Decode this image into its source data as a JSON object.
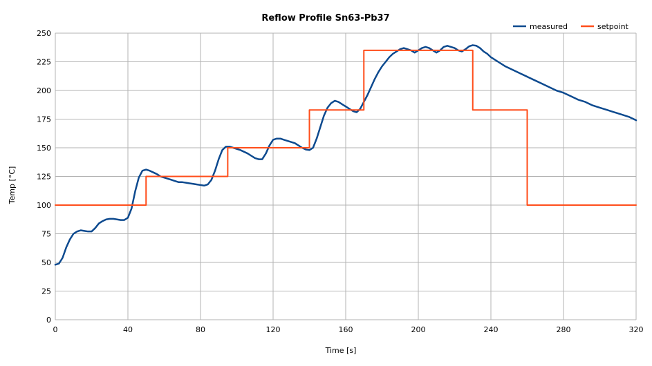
{
  "chart_data": {
    "type": "line",
    "title": "Reflow Profile Sn63-Pb37",
    "xlabel": "Time [s]",
    "ylabel": "Temp [°C]",
    "xlim": [
      0,
      320
    ],
    "ylim": [
      0,
      250
    ],
    "x_ticks": [
      0,
      40,
      80,
      120,
      160,
      200,
      240,
      280,
      320
    ],
    "y_ticks": [
      0,
      25,
      50,
      75,
      100,
      125,
      150,
      175,
      200,
      225,
      250
    ],
    "grid": true,
    "legend_position": "top-right",
    "series": [
      {
        "name": "measured",
        "color": "#0d4a8f",
        "points": [
          [
            0,
            48
          ],
          [
            2,
            49
          ],
          [
            4,
            54
          ],
          [
            6,
            63
          ],
          [
            8,
            70
          ],
          [
            10,
            75
          ],
          [
            12,
            77
          ],
          [
            14,
            78
          ],
          [
            16,
            77.5
          ],
          [
            18,
            77
          ],
          [
            20,
            77
          ],
          [
            22,
            80
          ],
          [
            24,
            84
          ],
          [
            26,
            86
          ],
          [
            28,
            87.5
          ],
          [
            30,
            88
          ],
          [
            32,
            88
          ],
          [
            34,
            87.5
          ],
          [
            36,
            87
          ],
          [
            38,
            87
          ],
          [
            40,
            89
          ],
          [
            42,
            97
          ],
          [
            44,
            112
          ],
          [
            46,
            124
          ],
          [
            48,
            130
          ],
          [
            50,
            131
          ],
          [
            52,
            130
          ],
          [
            54,
            128.5
          ],
          [
            56,
            127
          ],
          [
            58,
            125
          ],
          [
            60,
            124
          ],
          [
            62,
            123
          ],
          [
            64,
            122
          ],
          [
            66,
            121
          ],
          [
            68,
            120
          ],
          [
            70,
            120
          ],
          [
            72,
            119.5
          ],
          [
            74,
            119
          ],
          [
            76,
            118.5
          ],
          [
            78,
            118
          ],
          [
            80,
            117.5
          ],
          [
            82,
            117
          ],
          [
            84,
            118
          ],
          [
            86,
            122
          ],
          [
            88,
            130
          ],
          [
            90,
            140
          ],
          [
            92,
            148
          ],
          [
            94,
            151
          ],
          [
            96,
            151
          ],
          [
            98,
            150
          ],
          [
            100,
            149
          ],
          [
            102,
            148
          ],
          [
            104,
            146.5
          ],
          [
            106,
            145
          ],
          [
            108,
            143
          ],
          [
            110,
            141
          ],
          [
            112,
            140
          ],
          [
            114,
            140
          ],
          [
            116,
            145
          ],
          [
            118,
            152
          ],
          [
            120,
            157
          ],
          [
            122,
            158
          ],
          [
            124,
            158
          ],
          [
            126,
            157
          ],
          [
            128,
            156
          ],
          [
            130,
            155
          ],
          [
            132,
            154
          ],
          [
            134,
            152
          ],
          [
            136,
            150
          ],
          [
            138,
            148.5
          ],
          [
            140,
            148
          ],
          [
            142,
            150
          ],
          [
            144,
            158
          ],
          [
            146,
            168
          ],
          [
            148,
            178
          ],
          [
            150,
            185
          ],
          [
            152,
            189
          ],
          [
            154,
            191
          ],
          [
            156,
            190
          ],
          [
            158,
            188
          ],
          [
            160,
            186
          ],
          [
            162,
            184
          ],
          [
            164,
            182
          ],
          [
            166,
            181
          ],
          [
            168,
            184
          ],
          [
            170,
            190
          ],
          [
            172,
            196
          ],
          [
            174,
            203
          ],
          [
            176,
            210
          ],
          [
            178,
            216
          ],
          [
            180,
            221
          ],
          [
            182,
            225
          ],
          [
            184,
            229
          ],
          [
            186,
            232
          ],
          [
            188,
            234
          ],
          [
            190,
            236
          ],
          [
            192,
            237
          ],
          [
            194,
            236
          ],
          [
            196,
            235
          ],
          [
            198,
            233
          ],
          [
            200,
            235
          ],
          [
            202,
            237
          ],
          [
            204,
            238
          ],
          [
            206,
            237
          ],
          [
            208,
            235
          ],
          [
            210,
            233
          ],
          [
            212,
            235
          ],
          [
            214,
            238
          ],
          [
            216,
            239
          ],
          [
            218,
            238
          ],
          [
            220,
            237
          ],
          [
            222,
            235
          ],
          [
            224,
            234
          ],
          [
            226,
            236
          ],
          [
            228,
            238.5
          ],
          [
            230,
            239.5
          ],
          [
            232,
            239
          ],
          [
            234,
            237
          ],
          [
            236,
            234
          ],
          [
            238,
            232
          ],
          [
            240,
            229
          ],
          [
            244,
            225
          ],
          [
            248,
            221
          ],
          [
            252,
            218
          ],
          [
            256,
            215
          ],
          [
            260,
            212
          ],
          [
            264,
            209
          ],
          [
            268,
            206
          ],
          [
            272,
            203
          ],
          [
            276,
            200
          ],
          [
            280,
            198
          ],
          [
            284,
            195
          ],
          [
            288,
            192
          ],
          [
            292,
            190
          ],
          [
            296,
            187
          ],
          [
            300,
            185
          ],
          [
            304,
            183
          ],
          [
            308,
            181
          ],
          [
            312,
            179
          ],
          [
            316,
            177
          ],
          [
            320,
            174
          ]
        ]
      },
      {
        "name": "setpoint",
        "color": "#ff4d1a",
        "points": [
          [
            0,
            100
          ],
          [
            50,
            100
          ],
          [
            50,
            125
          ],
          [
            95,
            125
          ],
          [
            95,
            150
          ],
          [
            140,
            150
          ],
          [
            140,
            183
          ],
          [
            170,
            183
          ],
          [
            170,
            235
          ],
          [
            230,
            235
          ],
          [
            230,
            183
          ],
          [
            260,
            183
          ],
          [
            260,
            100
          ],
          [
            320,
            100
          ]
        ]
      }
    ]
  }
}
